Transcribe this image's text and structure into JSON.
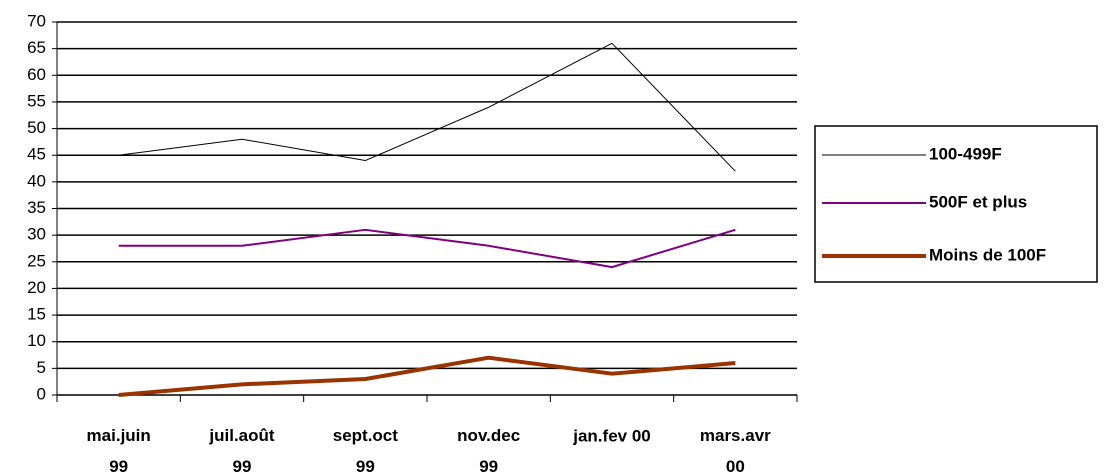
{
  "chart_data": {
    "type": "line",
    "categories": [
      "mai.juin\n99",
      "juil.août\n99",
      "sept.oct\n99",
      "nov.dec\n99",
      "jan.fev 00",
      "mars.avr\n00"
    ],
    "series": [
      {
        "name": "100-499F",
        "color": "#000000",
        "width": 1,
        "values": [
          45,
          48,
          44,
          54,
          66,
          42
        ]
      },
      {
        "name": "500F et plus",
        "color": "#800080",
        "width": 2,
        "values": [
          28,
          28,
          31,
          28,
          24,
          31
        ]
      },
      {
        "name": "Moins de 100F",
        "color": "#993300",
        "width": 4,
        "values": [
          0,
          2,
          3,
          7,
          4,
          6
        ]
      }
    ],
    "ylim": [
      0,
      70
    ],
    "yticks": [
      0,
      5,
      10,
      15,
      20,
      25,
      30,
      35,
      40,
      45,
      50,
      55,
      60,
      65,
      70
    ],
    "grid": true,
    "legend": "right"
  }
}
